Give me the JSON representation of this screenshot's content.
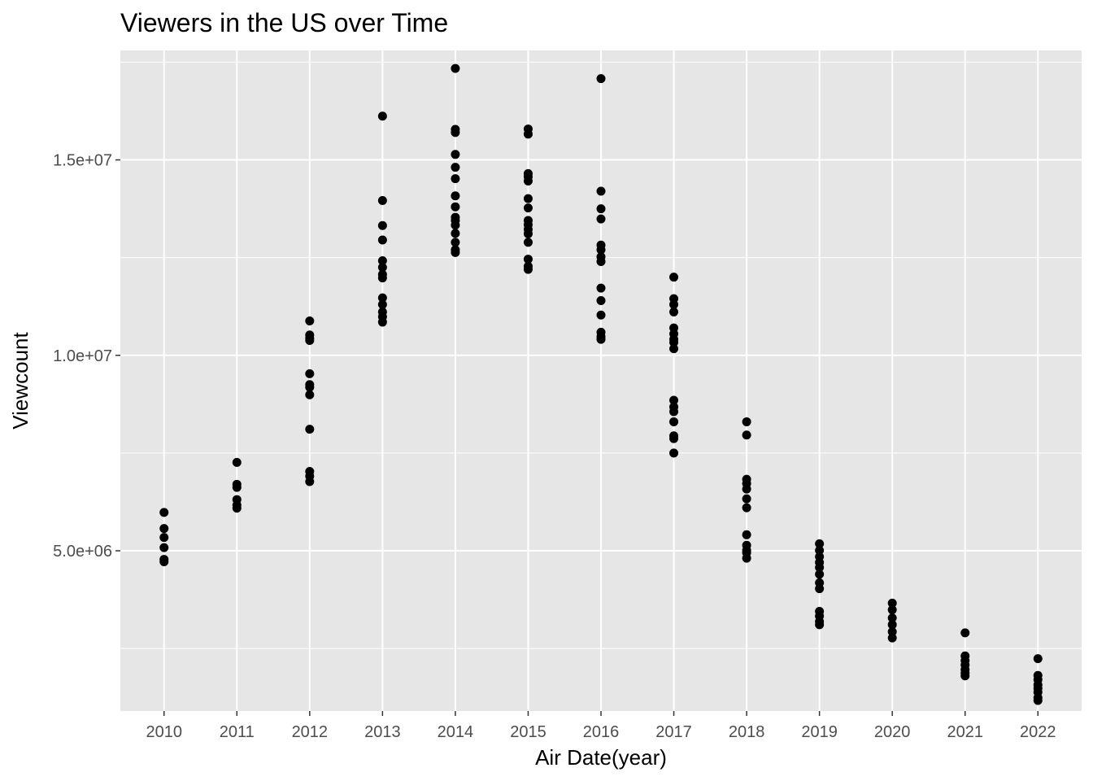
{
  "chart_data": {
    "type": "scatter",
    "title": "Viewers in the US over Time",
    "xlabel": "Air Date(year)",
    "ylabel": "Viewcount",
    "xlim": [
      2009.4,
      2022.6
    ],
    "ylim": [
      900000,
      17800000
    ],
    "x_ticks": [
      2010,
      2011,
      2012,
      2013,
      2014,
      2015,
      2016,
      2017,
      2018,
      2019,
      2020,
      2021,
      2022
    ],
    "y_ticks": [
      5000000,
      10000000,
      15000000
    ],
    "y_tick_labels": [
      "5.0e+06",
      "1.0e+07",
      "1.5e+07"
    ],
    "y_minor_ticks": [
      2500000,
      7500000,
      12500000,
      17500000
    ],
    "grid": true,
    "panel_background": "#e6e6e6",
    "point_color": "#000000",
    "series": [
      {
        "points": [
          {
            "x": 2010,
            "y": [
              5980000,
              5570000,
              5340000,
              5080000,
              4780000,
              4720000
            ]
          },
          {
            "x": 2011,
            "y": [
              7260000,
              6700000,
              6620000,
              6310000,
              6170000,
              6090000
            ]
          },
          {
            "x": 2012,
            "y": [
              10880000,
              10520000,
              10440000,
              10380000,
              9530000,
              9250000,
              9180000,
              8990000,
              8110000,
              7030000,
              6910000,
              6770000
            ]
          },
          {
            "x": 2013,
            "y": [
              16120000,
              13960000,
              13320000,
              12950000,
              12420000,
              12250000,
              12070000,
              11980000,
              11470000,
              11300000,
              11110000,
              10990000,
              10850000
            ]
          },
          {
            "x": 2014,
            "y": [
              17340000,
              15780000,
              15700000,
              15140000,
              14810000,
              14520000,
              14080000,
              13800000,
              13530000,
              13450000,
              13330000,
              13120000,
              12890000,
              12700000,
              12630000
            ]
          },
          {
            "x": 2015,
            "y": [
              15790000,
              15660000,
              14650000,
              14570000,
              14460000,
              14010000,
              13770000,
              13450000,
              13340000,
              13220000,
              13110000,
              12890000,
              12460000,
              12280000,
              12200000
            ]
          },
          {
            "x": 2016,
            "y": [
              17080000,
              14200000,
              13750000,
              13490000,
              12820000,
              12700000,
              12520000,
              12400000,
              11720000,
              11400000,
              11030000,
              10590000,
              10480000,
              10410000
            ]
          },
          {
            "x": 2017,
            "y": [
              12000000,
              11450000,
              11300000,
              11110000,
              10700000,
              10550000,
              10410000,
              10330000,
              10170000,
              8850000,
              8680000,
              8560000,
              8300000,
              7940000,
              7870000,
              7500000
            ]
          },
          {
            "x": 2018,
            "y": [
              8300000,
              7960000,
              6830000,
              6720000,
              6580000,
              6330000,
              6100000,
              5410000,
              5140000,
              5010000,
              4950000,
              4810000
            ]
          },
          {
            "x": 2019,
            "y": [
              5180000,
              5010000,
              4850000,
              4700000,
              4570000,
              4400000,
              4180000,
              4030000,
              3450000,
              3330000,
              3190000,
              3110000
            ]
          },
          {
            "x": 2020,
            "y": [
              3660000,
              3490000,
              3280000,
              3110000,
              2930000,
              2770000
            ]
          },
          {
            "x": 2021,
            "y": [
              2900000,
              2310000,
              2190000,
              2080000,
              1960000,
              1870000,
              1800000
            ]
          },
          {
            "x": 2022,
            "y": [
              2240000,
              1810000,
              1700000,
              1570000,
              1480000,
              1380000,
              1240000,
              1170000
            ]
          }
        ]
      }
    ]
  }
}
